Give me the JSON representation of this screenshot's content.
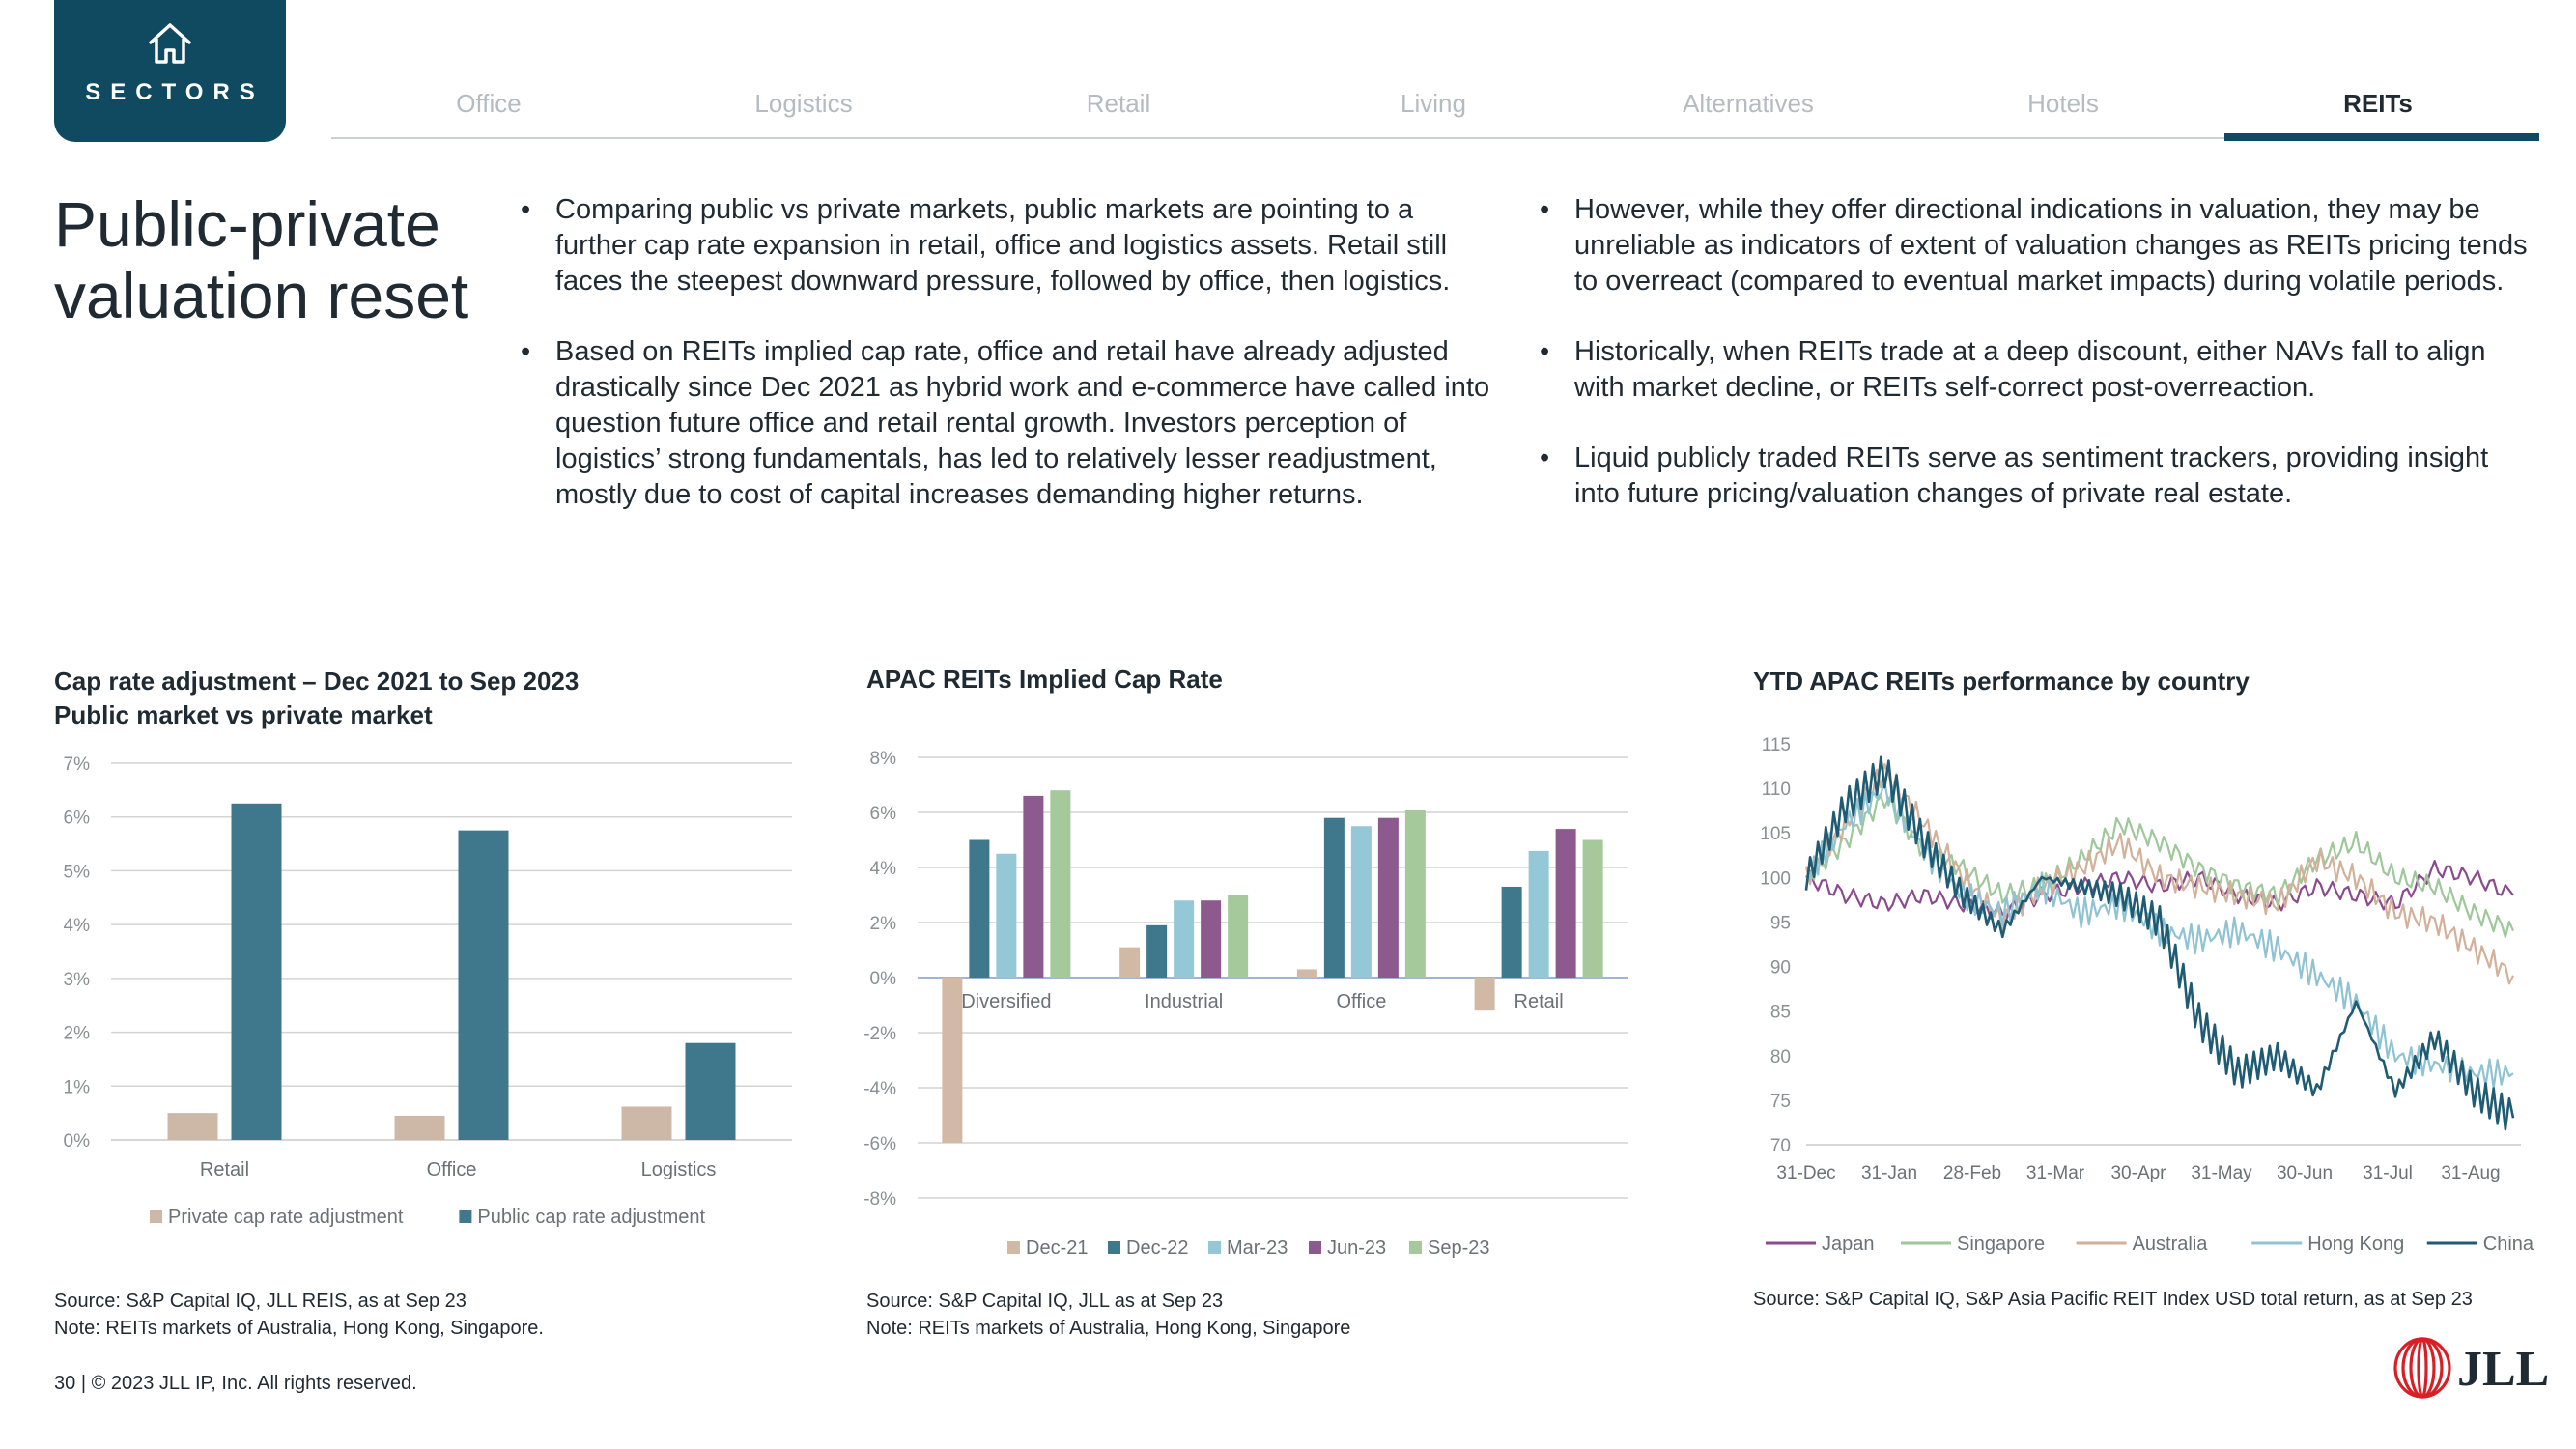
{
  "nav": {
    "sectors_label": "SECTORS",
    "tabs": [
      "Office",
      "Logistics",
      "Retail",
      "Living",
      "Alternatives",
      "Hotels",
      "REITs"
    ],
    "active_tab": "REITs"
  },
  "title_line1": "Public-private",
  "title_line2": "valuation reset",
  "bullets_left": [
    "Comparing public vs private markets, public markets are pointing to a further cap rate expansion in retail, office and logistics assets. Retail still faces the steepest downward pressure, followed by office, then logistics.",
    "Based on REITs implied cap rate, office and retail have already adjusted drastically since Dec 2021 as hybrid work and e-commerce have called into question future office and retail rental growth. Investors perception of logistics’ strong fundamentals, has led to relatively lesser readjustment, mostly due to cost of capital increases demanding higher returns."
  ],
  "bullets_right": [
    "However, while they offer directional indications in valuation, they may be unreliable as indicators of extent of valuation changes as REITs pricing tends to overreact (compared to eventual market impacts) during volatile periods.",
    "Historically, when REITs trade at a deep discount, either NAVs fall to align with market decline, or REITs self-correct post-overreaction.",
    "Liquid publicly traded REITs serve as sentiment trackers, providing insight into future pricing/valuation changes of private real estate."
  ],
  "sources": {
    "chart1_line1": "Source: S&P Capital IQ, JLL REIS, as at Sep 23",
    "chart1_line2": "Note: REITs markets of Australia, Hong Kong, Singapore.",
    "chart2_line1": "Source: S&P Capital IQ, JLL as at Sep 23",
    "chart2_line2": "Note: REITs markets of Australia, Hong Kong, Singapore",
    "chart3_line1": "Source: S&P Capital IQ, S&P Asia Pacific REIT Index USD total return,  as at Sep 23"
  },
  "footer": {
    "page_number": "30",
    "copyright": "© 2023 JLL IP, Inc. All rights reserved.",
    "logo_text": "JLL"
  },
  "colors": {
    "navy": "#0f4a60",
    "private": "#cdb8a8",
    "public": "#3f778c",
    "dec21": "#d2b9a6",
    "dec22": "#3f778c",
    "mar23": "#94c8d6",
    "jun23": "#8c5a8e",
    "sep23": "#a5c99a",
    "japan": "#8c4a8e",
    "singapore": "#9ec79a",
    "australia": "#d2b09a",
    "hongkong": "#8fc3d3",
    "china": "#1f5b73"
  },
  "chart_data": [
    {
      "type": "bar",
      "title": "Cap rate adjustment – Dec 2021 to Sep 2023",
      "subtitle": "Public market vs private market",
      "categories": [
        "Retail",
        "Office",
        "Logistics"
      ],
      "series": [
        {
          "name": "Private cap rate adjustment",
          "values": [
            0.5,
            0.45,
            0.62
          ]
        },
        {
          "name": "Public cap rate adjustment",
          "values": [
            6.25,
            5.75,
            1.8
          ]
        }
      ],
      "ylim": [
        0,
        7
      ],
      "yticks": [
        "0%",
        "1%",
        "2%",
        "3%",
        "4%",
        "5%",
        "6%",
        "7%"
      ],
      "legend": "bottom",
      "grid": true
    },
    {
      "type": "bar",
      "title": "APAC REITs Implied Cap Rate",
      "categories": [
        "Diversified",
        "Industrial",
        "Office",
        "Retail"
      ],
      "series": [
        {
          "name": "Dec-21",
          "values": [
            -6.0,
            1.1,
            0.3,
            -1.2
          ]
        },
        {
          "name": "Dec-22",
          "values": [
            5.0,
            1.9,
            5.8,
            3.3
          ]
        },
        {
          "name": "Mar-23",
          "values": [
            4.5,
            2.8,
            5.5,
            4.6
          ]
        },
        {
          "name": "Jun-23",
          "values": [
            6.6,
            2.8,
            5.8,
            5.4
          ]
        },
        {
          "name": "Sep-23",
          "values": [
            6.8,
            3.0,
            6.1,
            5.0
          ]
        }
      ],
      "ylim": [
        -8,
        8
      ],
      "yticks": [
        "-8%",
        "-6%",
        "-4%",
        "-2%",
        "0%",
        "2%",
        "4%",
        "6%",
        "8%"
      ],
      "legend": "bottom",
      "grid": true
    },
    {
      "type": "line",
      "title": "YTD APAC REITs performance by country",
      "xticks": [
        "31-Dec",
        "31-Jan",
        "28-Feb",
        "31-Mar",
        "30-Apr",
        "31-May",
        "30-Jun",
        "31-Jul",
        "31-Aug"
      ],
      "ylim": [
        70,
        115
      ],
      "yticks": [
        "70",
        "75",
        "80",
        "85",
        "90",
        "95",
        "100",
        "105",
        "110",
        "115"
      ],
      "x": [
        "31-Dec",
        "15-Jan",
        "31-Jan",
        "15-Feb",
        "28-Feb",
        "15-Mar",
        "31-Mar",
        "15-Apr",
        "30-Apr",
        "15-May",
        "31-May",
        "15-Jun",
        "30-Jun",
        "15-Jul",
        "31-Jul",
        "15-Aug",
        "31-Aug",
        "15-Sep",
        "22-Sep"
      ],
      "series": [
        {
          "name": "Japan",
          "values": [
            100,
            98,
            97,
            98,
            97,
            96,
            98,
            99,
            100,
            99,
            100,
            98,
            97,
            99,
            98,
            97,
            101,
            100,
            98
          ]
        },
        {
          "name": "Singapore",
          "values": [
            100,
            104,
            109,
            103,
            101,
            98,
            99,
            102,
            106,
            104,
            101,
            99,
            98,
            102,
            104,
            100,
            99,
            96,
            94
          ]
        },
        {
          "name": "Australia",
          "values": [
            100,
            106,
            112,
            106,
            100,
            95,
            99,
            101,
            104,
            100,
            99,
            98,
            97,
            102,
            100,
            96,
            95,
            92,
            89
          ]
        },
        {
          "name": "Hong Kong",
          "values": [
            100,
            106,
            110,
            103,
            98,
            96,
            99,
            96,
            97,
            94,
            93,
            94,
            92,
            89,
            86,
            80,
            79,
            78,
            78
          ]
        },
        {
          "name": "China",
          "values": [
            100,
            108,
            112,
            104,
            98,
            94,
            100,
            99,
            98,
            95,
            84,
            78,
            80,
            76,
            86,
            76,
            82,
            76,
            73
          ]
        }
      ],
      "legend": "bottom",
      "grid": false
    }
  ]
}
